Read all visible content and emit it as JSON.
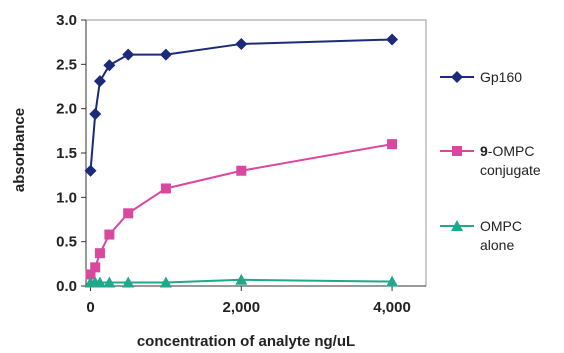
{
  "chart_data": {
    "type": "line",
    "xlabel": "concentration of analyte ng/uL",
    "ylabel": "absorbance",
    "xlim": [
      -60,
      4450
    ],
    "ylim": [
      0,
      3.0
    ],
    "x_ticks": [
      0,
      2000,
      4000
    ],
    "x_tick_labels": [
      "0",
      "2,000",
      "4,000"
    ],
    "y_ticks": [
      0,
      0.5,
      1.0,
      1.5,
      2.0,
      2.5,
      3.0
    ],
    "y_tick_labels": [
      "0.0",
      "0.5",
      "1.0",
      "1.5",
      "2.0",
      "2.5",
      "3.0"
    ],
    "grid": false,
    "legend_position": "right",
    "series": [
      {
        "name": "Gp160",
        "name_lines": [
          [
            "",
            "Gp160"
          ]
        ],
        "color": "#1c2a7a",
        "marker": "diamond",
        "x": [
          0,
          62.5,
          125,
          250,
          500,
          1000,
          2000,
          4000
        ],
        "y": [
          1.3,
          1.94,
          2.31,
          2.49,
          2.61,
          2.61,
          2.73,
          2.78
        ]
      },
      {
        "name": "9-OMPC conjugate",
        "name_lines": [
          [
            "9",
            "-OMPC"
          ],
          [
            "",
            "conjugate"
          ]
        ],
        "color": "#d9479f",
        "marker": "square",
        "x": [
          0,
          62.5,
          125,
          250,
          500,
          1000,
          2000,
          4000
        ],
        "y": [
          0.13,
          0.21,
          0.37,
          0.58,
          0.82,
          1.1,
          1.3,
          1.6
        ]
      },
      {
        "name": "OMPC alone",
        "name_lines": [
          [
            "",
            "OMPC"
          ],
          [
            "",
            "alone"
          ]
        ],
        "color": "#1fa889",
        "marker": "triangle",
        "x": [
          0,
          62.5,
          125,
          250,
          500,
          1000,
          2000,
          4000
        ],
        "y": [
          0.04,
          0.04,
          0.04,
          0.04,
          0.04,
          0.04,
          0.07,
          0.05
        ]
      }
    ]
  }
}
